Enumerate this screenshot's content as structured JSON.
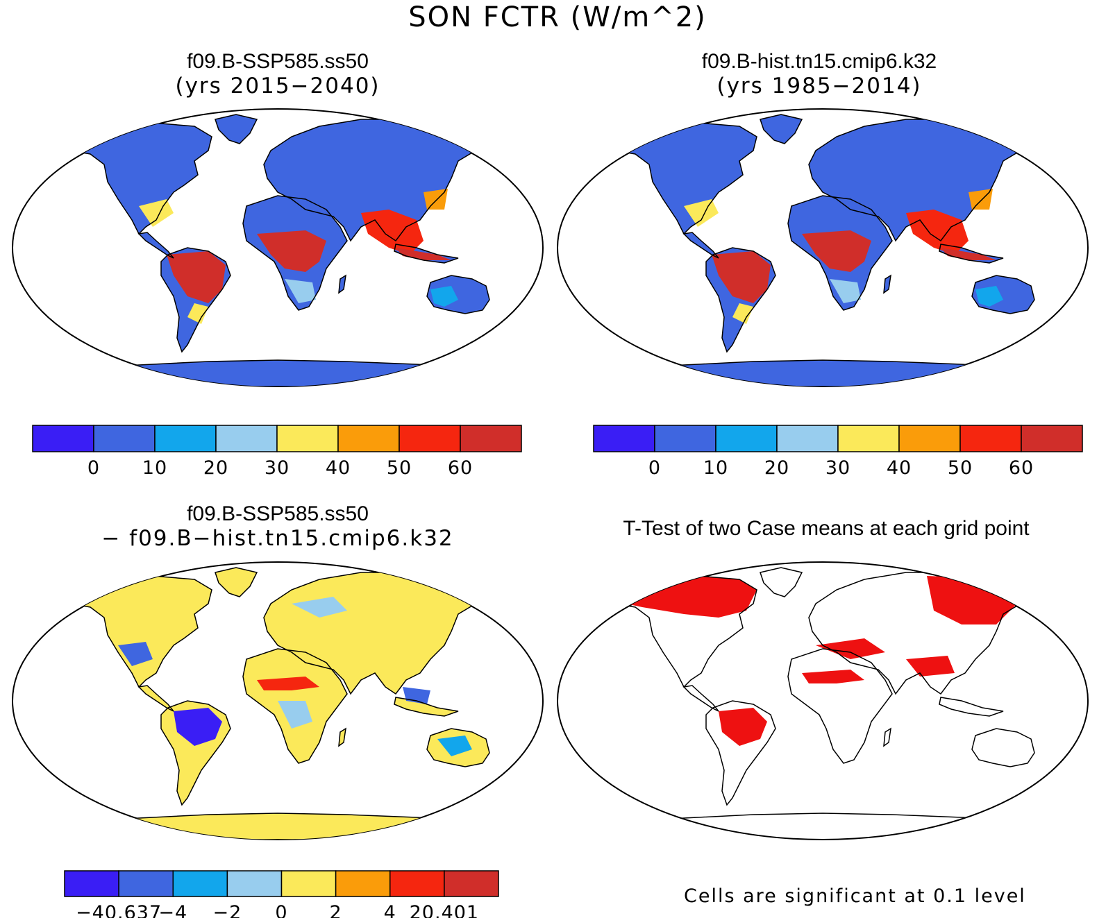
{
  "title": "SON FCTR (W/m^2)",
  "colors": {
    "c0": "#3a1ef5",
    "c1": "#3f66e0",
    "c2": "#12a6ec",
    "c3": "#98cdee",
    "c4": "#fbe95a",
    "c5": "#fa9c0a",
    "c6": "#f5260f",
    "c7": "#d02e2a",
    "ocean": "#ffffff",
    "outline": "#000000",
    "sig": "#ee1111"
  },
  "panels": [
    {
      "id": "top-left",
      "title_line1": "f09.B-SSP585.ss50",
      "title_line2": "(yrs 2015−2040)",
      "colorbar": {
        "labels": [
          "0",
          "10",
          "20",
          "30",
          "40",
          "50",
          "60"
        ]
      }
    },
    {
      "id": "top-right",
      "title_line1": "f09.B-hist.tn15.cmip6.k32",
      "title_line2": "(yrs 1985−2014)",
      "colorbar": {
        "labels": [
          "0",
          "10",
          "20",
          "30",
          "40",
          "50",
          "60"
        ]
      }
    },
    {
      "id": "bottom-left",
      "title_line1": "f09.B-SSP585.ss50",
      "title_line2": "− f09.B−hist.tn15.cmip6.k32",
      "colorbar": {
        "labels": [
          "−40.637",
          "−4",
          "−2",
          "0",
          "2",
          "4",
          "20.401"
        ]
      }
    },
    {
      "id": "bottom-right",
      "title_line1": "T-Test of two Case means at each grid point",
      "note": "Cells are significant at 0.1 level"
    }
  ]
}
